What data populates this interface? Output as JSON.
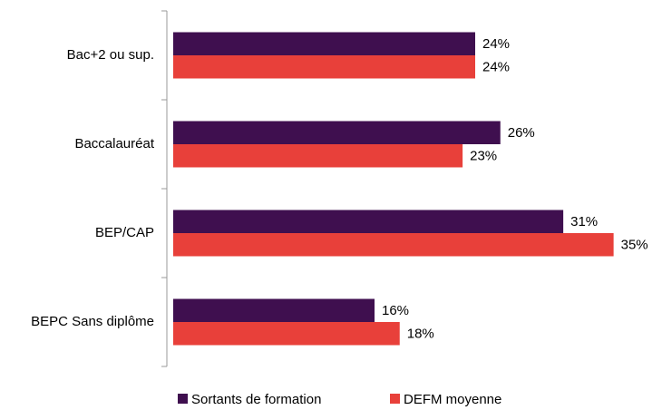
{
  "chart_data": {
    "type": "bar",
    "orientation": "horizontal",
    "categories": [
      "Bac+2 ou sup.",
      "Baccalauréat",
      "BEP/CAP",
      "BEPC Sans diplôme"
    ],
    "series": [
      {
        "name": "Sortants de formation",
        "color": "#3f0f4f",
        "values": [
          24,
          26,
          31,
          16
        ],
        "value_labels": [
          "24%",
          "26%",
          "31%",
          "16%"
        ]
      },
      {
        "name": "DEFM moyenne",
        "color": "#e8403a",
        "values": [
          24,
          23,
          35,
          18
        ],
        "value_labels": [
          "24%",
          "23%",
          "35%",
          "18%"
        ]
      }
    ],
    "legend": "bottom"
  }
}
